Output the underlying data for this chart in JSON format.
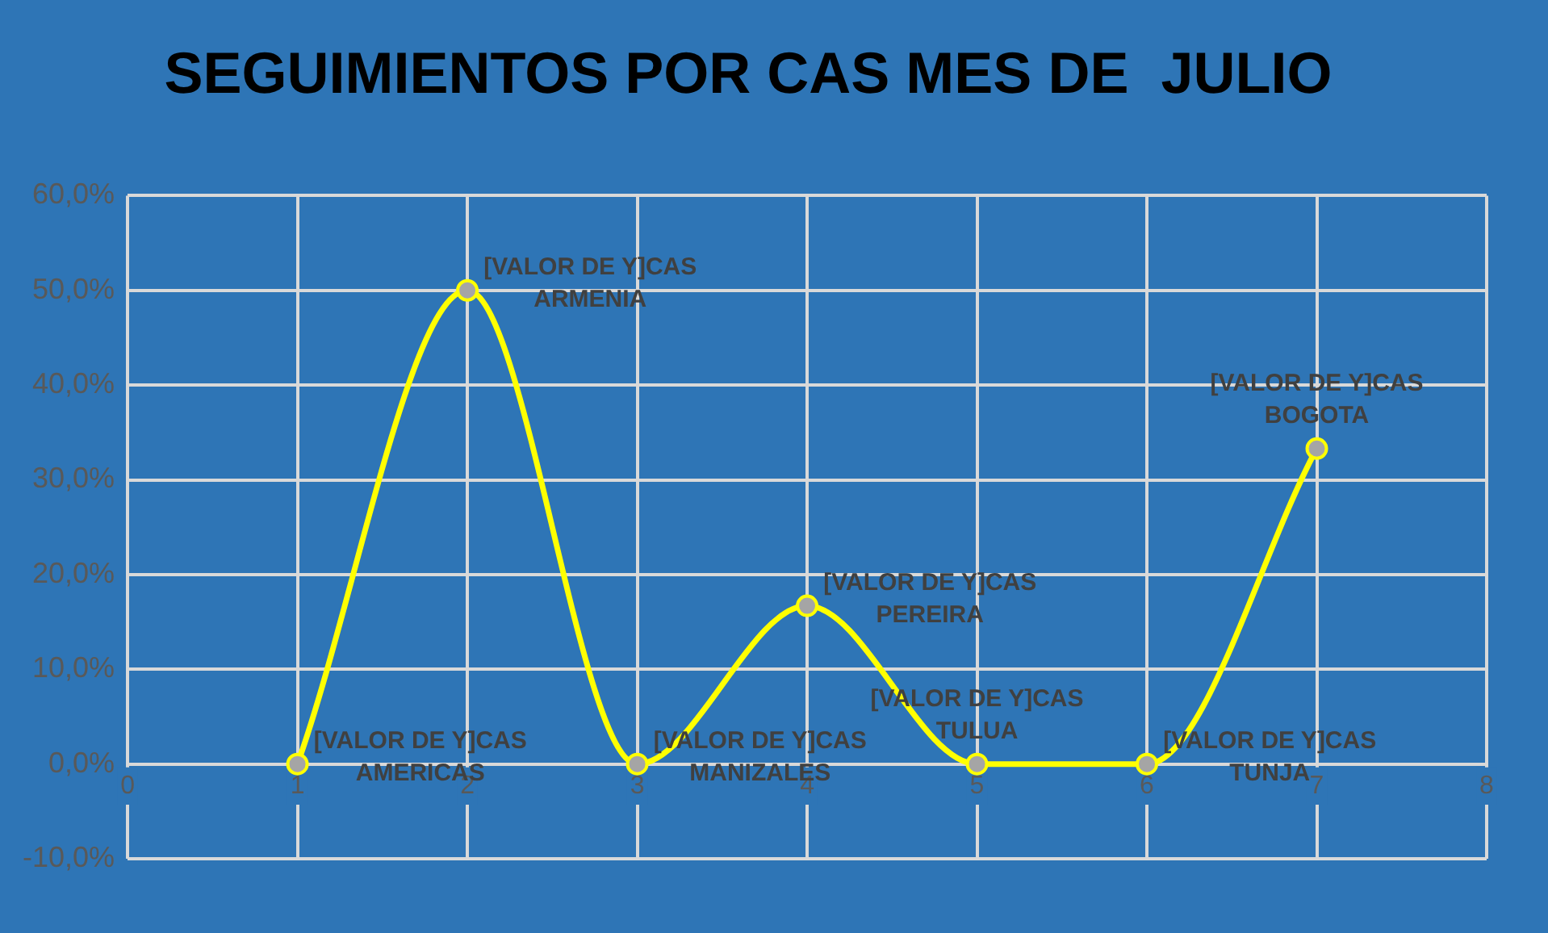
{
  "chart_data": {
    "type": "line",
    "title": "SEGUIMIENTOS POR CAS MES DE  JULIO",
    "x": [
      1,
      2,
      3,
      4,
      5,
      6,
      7
    ],
    "series": [
      {
        "color": "#ffff00",
        "values": [
          0,
          50,
          0,
          16.7,
          0,
          0,
          33.3
        ],
        "value_labels": [
          "[VALOR DE Y]CAS\nAMERICAS",
          "[VALOR DE Y]CAS\nARMENIA",
          "[VALOR DE Y]CAS\nMANIZALES",
          "[VALOR DE Y]CAS\nPEREIRA",
          "[VALOR DE Y]CAS\nTULUA",
          "[VALOR DE Y]CAS\nTUNJA",
          "[VALOR DE Y]CAS\nBOGOTA"
        ]
      }
    ],
    "xlim": [
      0,
      8
    ],
    "xticks": [
      0,
      1,
      2,
      3,
      4,
      5,
      6,
      7,
      8
    ],
    "ylim": [
      -10,
      60
    ],
    "yticks": [
      {
        "value": -10,
        "label": "-10,0%"
      },
      {
        "value": 0,
        "label": "0,0%"
      },
      {
        "value": 10,
        "label": "10,0%"
      },
      {
        "value": 20,
        "label": "20,0%"
      },
      {
        "value": 30,
        "label": "30,0%"
      },
      {
        "value": 40,
        "label": "40,0%"
      },
      {
        "value": 50,
        "label": "50,0%"
      },
      {
        "value": 60,
        "label": "60,0%"
      }
    ],
    "grid": true,
    "marker": "circle",
    "line_style": "solid"
  }
}
